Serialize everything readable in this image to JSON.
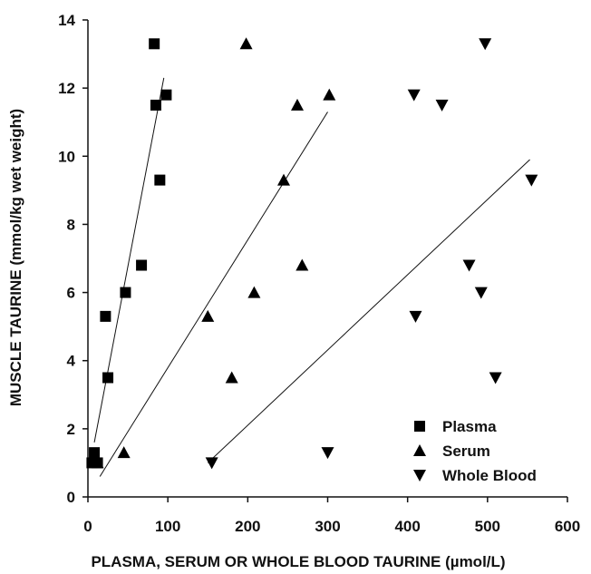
{
  "chart_data": {
    "type": "scatter",
    "title": "",
    "xlabel": "PLASMA, SERUM OR WHOLE BLOOD TAURINE (µmol/L)",
    "ylabel": "MUSCLE TAURINE (mmol/kg wet weight)",
    "xlim": [
      0,
      600
    ],
    "ylim": [
      0,
      14
    ],
    "xticks": [
      0,
      100,
      200,
      300,
      400,
      500,
      600
    ],
    "yticks": [
      0,
      2,
      4,
      6,
      8,
      10,
      12,
      14
    ],
    "grid": false,
    "legend_position": "bottom-right",
    "series": [
      {
        "name": "Plasma",
        "marker": "square",
        "points": [
          [
            5,
            1.0
          ],
          [
            8,
            1.3
          ],
          [
            12,
            1.0
          ],
          [
            22,
            5.3
          ],
          [
            25,
            3.5
          ],
          [
            47,
            6.0
          ],
          [
            67,
            6.8
          ],
          [
            83,
            13.3
          ],
          [
            85,
            11.5
          ],
          [
            90,
            9.3
          ],
          [
            98,
            11.8
          ]
        ],
        "fit_line": [
          [
            8,
            1.6
          ],
          [
            95,
            12.3
          ]
        ]
      },
      {
        "name": "Serum",
        "marker": "triangle-up",
        "points": [
          [
            12,
            1.0
          ],
          [
            45,
            1.3
          ],
          [
            150,
            5.3
          ],
          [
            180,
            3.5
          ],
          [
            198,
            13.3
          ],
          [
            208,
            6.0
          ],
          [
            245,
            9.3
          ],
          [
            262,
            11.5
          ],
          [
            268,
            6.8
          ],
          [
            302,
            11.8
          ]
        ],
        "fit_line": [
          [
            15,
            0.6
          ],
          [
            300,
            11.3
          ]
        ]
      },
      {
        "name": "Whole Blood",
        "marker": "triangle-down",
        "points": [
          [
            155,
            1.0
          ],
          [
            300,
            1.3
          ],
          [
            410,
            5.3
          ],
          [
            408,
            11.8
          ],
          [
            443,
            11.5
          ],
          [
            477,
            6.8
          ],
          [
            492,
            6.0
          ],
          [
            497,
            13.3
          ],
          [
            510,
            3.5
          ],
          [
            555,
            9.3
          ]
        ],
        "fit_line": [
          [
            150,
            1.0
          ],
          [
            553,
            9.9
          ]
        ]
      }
    ]
  }
}
